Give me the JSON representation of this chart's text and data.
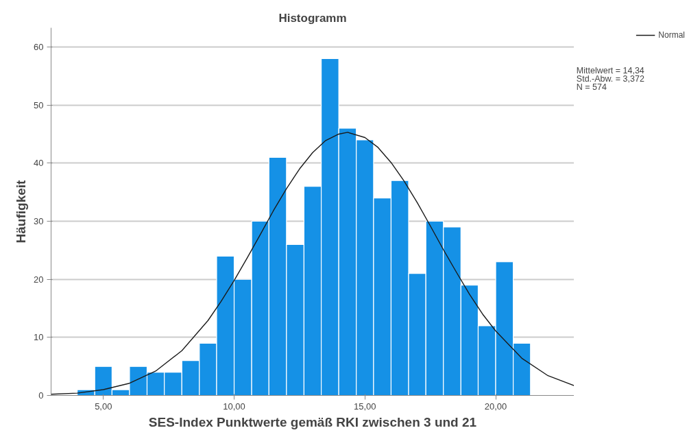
{
  "chart_data": {
    "type": "histogram",
    "title": "Histogramm",
    "xlabel": "SES-Index Punktwerte gemäß RKI zwischen 3 und 21",
    "ylabel": "Häufigkeit",
    "bins": [
      4.0,
      4.67,
      5.33,
      6.0,
      6.67,
      7.33,
      8.0,
      8.67,
      9.33,
      10.0,
      10.67,
      11.33,
      12.0,
      12.67,
      13.33,
      14.0,
      14.67,
      15.33,
      16.0,
      16.67,
      17.33,
      18.0,
      18.67,
      19.33,
      20.0,
      20.67,
      21.33
    ],
    "values": [
      1,
      5,
      1,
      5,
      4,
      4,
      6,
      9,
      24,
      20,
      30,
      41,
      26,
      36,
      58,
      46,
      44,
      34,
      37,
      21,
      30,
      29,
      19,
      12,
      23,
      9
    ],
    "color": "#1591e6",
    "series": [
      {
        "type": "line",
        "name": "Normal",
        "color": "#1a1a1a",
        "x": [
          3,
          4,
          5,
          6,
          7,
          8,
          9,
          9.5,
          10,
          10.5,
          11,
          11.5,
          12,
          12.5,
          13,
          13.5,
          14,
          14.34,
          15,
          15.5,
          16,
          16.5,
          17,
          17.5,
          18,
          18.5,
          19,
          19.5,
          20,
          21,
          22,
          23
        ],
        "values": [
          0.2,
          0.4,
          1.0,
          2.1,
          4.2,
          7.7,
          12.9,
          16.2,
          19.8,
          23.7,
          27.7,
          31.8,
          35.6,
          39.0,
          41.8,
          43.9,
          45.0,
          45.3,
          44.4,
          42.7,
          40.1,
          36.9,
          33.2,
          29.2,
          25.1,
          21.2,
          17.4,
          14.0,
          11.1,
          6.4,
          3.4,
          1.7
        ]
      }
    ],
    "annotations": [
      "Mittelwert = 14,34",
      "Std.-Abw. = 3,372",
      "N = 574"
    ],
    "xlim": [
      3,
      23
    ],
    "ylim": [
      0,
      63.3
    ],
    "xticks": [
      {
        "value": 5,
        "label": "5,00"
      },
      {
        "value": 10,
        "label": "10,00"
      },
      {
        "value": 15,
        "label": "15,00"
      },
      {
        "value": 20,
        "label": "20,00"
      }
    ],
    "yticks": [
      0,
      10,
      20,
      30,
      40,
      50,
      60
    ],
    "grid": "y",
    "legend": "top right",
    "line_style": "solid",
    "marker": "none"
  }
}
